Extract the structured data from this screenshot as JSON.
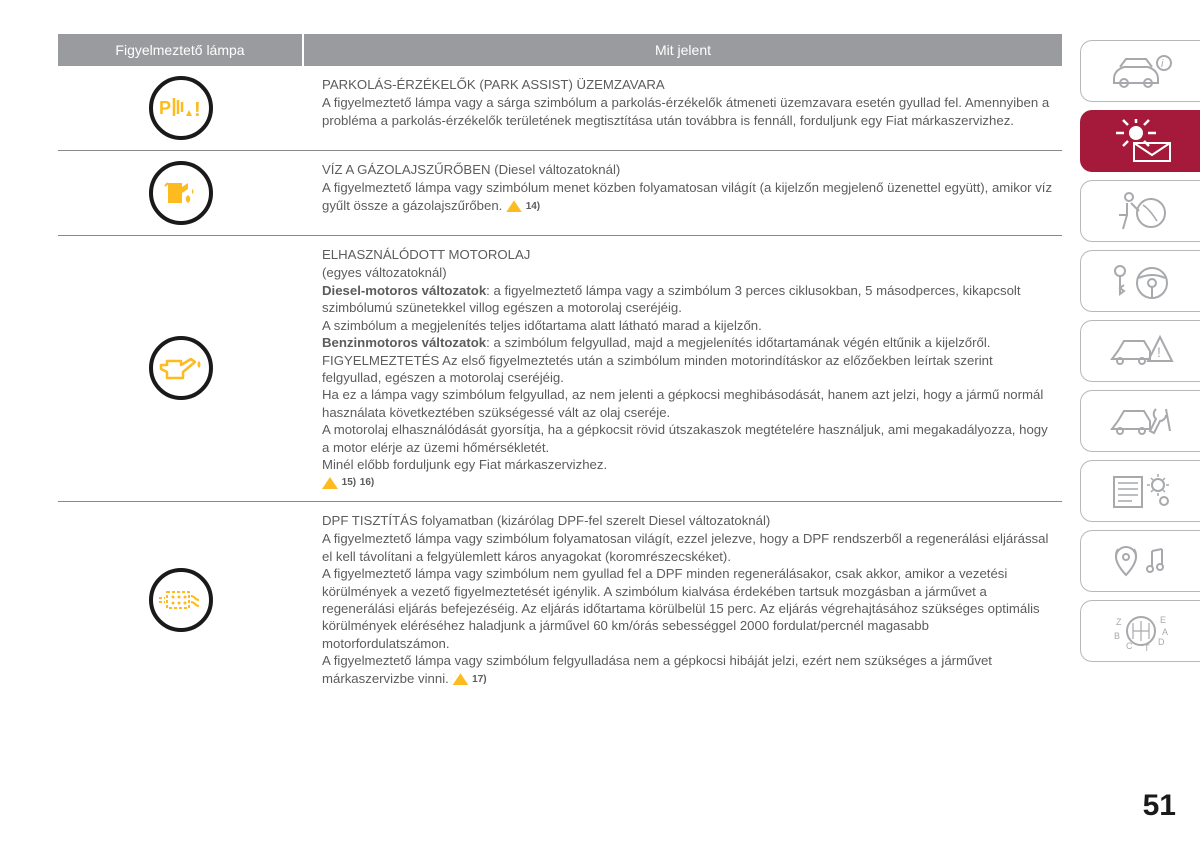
{
  "header": {
    "left": "Figyelmeztető lámpa",
    "right": "Mit jelent"
  },
  "rows": [
    {
      "icon": "park-assist",
      "title": "PARKOLÁS-ÉRZÉKELŐK (PARK ASSIST) ÜZEMZAVARA",
      "body": "A figyelmeztető lámpa vagy a sárga szimbólum a parkolás-érzékelők átmeneti üzemzavara esetén gyullad fel. Amennyiben a probléma a parkolás-érzékelők területének megtisztítása után továbbra is fennáll, forduljunk egy Fiat márkaszervizhez.",
      "refs": []
    },
    {
      "icon": "water-in-fuel",
      "title": "VÍZ A GÁZOLAJSZŰRŐBEN (Diesel változatoknál)",
      "body": "A figyelmeztető lámpa vagy szimbólum menet közben folyamatosan világít (a kijelzőn megjelenő üzenettel együtt), amikor víz gyűlt össze a gázolajszűrőben.",
      "refs": [
        "14)"
      ]
    },
    {
      "icon": "oil-can",
      "title": "ELHASZNÁLÓDOTT MOTOROLAJ",
      "subtitle": "(egyes változatoknál)",
      "body_html": "<strong>Diesel-motoros változatok</strong>: a figyelmeztető lámpa vagy a szimbólum 3 perces ciklusokban, 5 másodperces, kikapcsolt szimbólumú szünetekkel villog egészen a motorolaj cseréjéig.<br>A szimbólum a megjelenítés teljes időtartama alatt látható marad a kijelzőn.<br><strong>Benzinmotoros változatok</strong>: a szimbólum felgyullad, majd a megjelenítés időtartamának végén eltűnik a kijelzőről.<br>FIGYELMEZTETÉS Az első figyelmeztetés után a szimbólum minden motorindításkor az előzőekben leírtak szerint felgyullad, egészen a motorolaj cseréjéig.<br>Ha ez a lámpa vagy szimbólum felgyullad, az nem jelenti a gépkocsi meghibásodását, hanem azt jelzi, hogy a jármű normál használata következtében szükségessé vált az olaj cseréje.<br>A motorolaj elhasználódását gyorsítja, ha a gépkocsit rövid útszakaszok megtételére használjuk, ami megakadályozza, hogy a motor elérje az üzemi hőmérsékletét.<br>Minél előbb forduljunk egy Fiat márkaszervizhez.",
      "refs": [
        "15)",
        "16)"
      ]
    },
    {
      "icon": "dpf",
      "title": "DPF TISZTÍTÁS folyamatban (kizárólag DPF-fel szerelt Diesel változatoknál)",
      "body": "A figyelmeztető lámpa vagy szimbólum folyamatosan világít, ezzel jelezve, hogy a DPF rendszerből a regenerálási eljárással el kell távolítani a felgyülemlett káros anyagokat (koromrészecskéket).\nA figyelmeztető lámpa vagy szimbólum nem gyullad fel a DPF minden regenerálásakor, csak akkor, amikor a vezetési körülmények a vezető figyelmeztetését igénylik. A szimbólum kialvása érdekében tartsuk mozgásban a járművet a regenerálási eljárás befejezéséig. Az eljárás időtartama körülbelül 15 perc. Az eljárás végrehajtásához szükséges optimális körülmények eléréséhez haladjunk a járművel 60 km/órás sebességgel 2000 fordulat/percnél magasabb motorfordulatszámon.\nA figyelmeztető lámpa vagy szimbólum felgyulladása nem a gépkocsi hibáját jelzi, ezért nem szükséges a járművet márkaszervizbe vinni.",
      "refs": [
        "17)"
      ]
    }
  ],
  "sidebar_tabs": [
    "car-info",
    "lamp-mail",
    "airbag",
    "key-wheel",
    "car-warn",
    "car-tool",
    "list-gear",
    "location-music",
    "transmission"
  ],
  "active_tab": 1,
  "page_number": "51",
  "colors": {
    "header_bg": "#999b9f",
    "accent": "#a5193a",
    "amber": "#fdbb1f",
    "text": "#5c5c5c",
    "tab_border": "#b6b8ba"
  }
}
